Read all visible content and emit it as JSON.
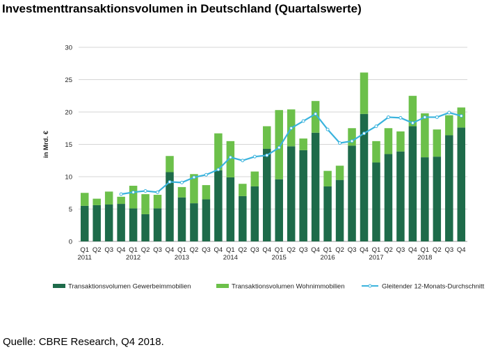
{
  "title": "Investmenttransaktionsvolumen in Deutschland (Quartalswerte)",
  "source": "Quelle: CBRE Research, Q4 2018.",
  "chart_data": {
    "type": "bar",
    "stacked": true,
    "ylabel": "in Mrd. €",
    "ylim": [
      0,
      30
    ],
    "yticks": [
      0,
      5,
      10,
      15,
      20,
      25,
      30
    ],
    "grid": true,
    "legend_position": "bottom",
    "categories": [
      "Q1",
      "Q2",
      "Q3",
      "Q4",
      "Q1",
      "Q2",
      "Q3",
      "Q4",
      "Q1",
      "Q2",
      "Q3",
      "Q4",
      "Q1",
      "Q2",
      "Q3",
      "Q4",
      "Q1",
      "Q2",
      "Q3",
      "Q4",
      "Q1",
      "Q2",
      "Q3",
      "Q4",
      "Q1",
      "Q2",
      "Q3",
      "Q4",
      "Q1",
      "Q2",
      "Q3",
      "Q4"
    ],
    "years": [
      "2011",
      "2012",
      "2013",
      "2014",
      "2015",
      "2016",
      "2017",
      "2018"
    ],
    "series": [
      {
        "name": "Transaktionsvolumen Gewerbeimmobilien",
        "kind": "bar",
        "color": "#1e6b4a",
        "values": [
          5.5,
          5.6,
          5.7,
          5.8,
          5.1,
          4.2,
          5.1,
          10.7,
          6.8,
          5.9,
          6.5,
          11.0,
          9.9,
          7.0,
          8.5,
          14.3,
          9.6,
          14.7,
          14.1,
          16.8,
          8.5,
          9.5,
          14.8,
          19.7,
          12.2,
          13.5,
          13.9,
          17.8,
          13.0,
          13.1,
          16.4,
          17.6
        ]
      },
      {
        "name": "Transaktionsvolumen Wohnimmobilien",
        "kind": "bar",
        "color": "#6cc04a",
        "values": [
          2.0,
          1.0,
          2.0,
          1.1,
          3.5,
          3.1,
          2.1,
          2.5,
          1.6,
          4.5,
          2.2,
          5.7,
          5.6,
          1.9,
          2.3,
          3.5,
          10.7,
          5.7,
          1.8,
          4.9,
          2.4,
          2.2,
          2.7,
          6.4,
          3.3,
          4.0,
          3.1,
          4.7,
          6.8,
          4.2,
          3.1,
          3.1
        ]
      },
      {
        "name": "Gleitender 12-Monats-Durchschnitt",
        "kind": "line",
        "color": "#3ab3dd",
        "values": [
          null,
          null,
          null,
          7.3,
          7.6,
          7.8,
          7.6,
          9.2,
          9.1,
          9.9,
          10.3,
          11.1,
          13.0,
          12.5,
          13.1,
          13.3,
          14.5,
          17.5,
          18.6,
          19.7,
          17.3,
          15.2,
          15.5,
          16.7,
          17.8,
          19.2,
          19.1,
          18.3,
          19.2,
          19.2,
          19.9,
          19.4
        ]
      }
    ]
  }
}
